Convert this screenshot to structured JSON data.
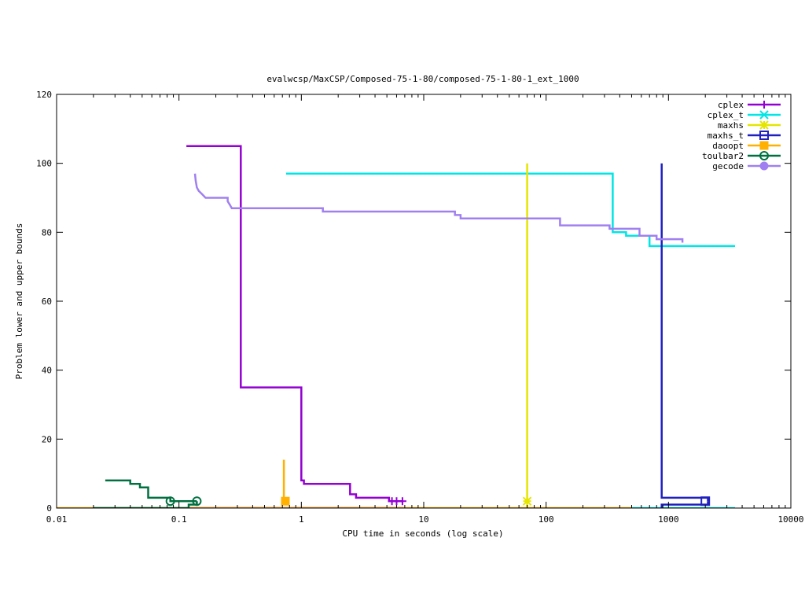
{
  "chart_data": {
    "type": "line",
    "title": "evalwcsp/MaxCSP/Composed-75-1-80/composed-75-1-80-1_ext_1000",
    "xlabel": "CPU time in seconds (log scale)",
    "ylabel": "Problem lower and upper bounds",
    "xscale": "log",
    "xlim": [
      0.01,
      10000
    ],
    "ylim": [
      0,
      120
    ],
    "xticks": [
      0.01,
      0.1,
      1,
      10,
      100,
      1000,
      10000
    ],
    "xtick_labels": [
      "0.01",
      "0.1",
      "1",
      "10",
      "100",
      "1000",
      "10000"
    ],
    "yticks": [
      0,
      20,
      40,
      60,
      80,
      100,
      120
    ],
    "ytick_labels": [
      "0",
      "20",
      "40",
      "60",
      "80",
      "100",
      "120"
    ],
    "grid": false,
    "legend_position": "top-right",
    "series": [
      {
        "name": "cplex",
        "color": "#9400d3",
        "marker": "plus",
        "upper": [
          [
            0.115,
            105
          ],
          [
            0.32,
            105
          ],
          [
            0.32,
            35
          ],
          [
            1.0,
            35
          ],
          [
            1.0,
            8
          ],
          [
            1.05,
            8
          ],
          [
            1.05,
            7
          ],
          [
            2.5,
            7
          ],
          [
            2.5,
            4
          ],
          [
            2.8,
            4
          ],
          [
            2.8,
            3
          ],
          [
            5.2,
            3
          ],
          [
            5.2,
            2
          ],
          [
            6.8,
            2
          ]
        ],
        "lower": [
          [
            0.115,
            0
          ],
          [
            6.8,
            0
          ]
        ],
        "points": [
          [
            5.5,
            2
          ],
          [
            6.0,
            2
          ],
          [
            6.7,
            2
          ]
        ]
      },
      {
        "name": "cplex_t",
        "color": "#00e5e5",
        "marker": "cross",
        "upper": [
          [
            0.75,
            97
          ],
          [
            350,
            97
          ],
          [
            350,
            80
          ],
          [
            450,
            80
          ],
          [
            450,
            79
          ],
          [
            700,
            79
          ],
          [
            700,
            76
          ],
          [
            3500,
            76
          ]
        ],
        "lower": [
          [
            500,
            0
          ],
          [
            3500,
            0
          ]
        ],
        "points": []
      },
      {
        "name": "maxhs",
        "color": "#e5e500",
        "marker": "star",
        "upper": [
          [
            70,
            100
          ],
          [
            70,
            2
          ]
        ],
        "lower": [
          [
            70,
            0
          ],
          [
            70,
            2
          ]
        ],
        "points": [
          [
            70,
            2
          ]
        ]
      },
      {
        "name": "maxhs_t",
        "color": "#2020c0",
        "marker": "open-square",
        "upper": [
          [
            880,
            100
          ],
          [
            880,
            3
          ],
          [
            2100,
            3
          ],
          [
            2100,
            2
          ]
        ],
        "lower": [
          [
            880,
            0
          ],
          [
            880,
            1
          ],
          [
            2100,
            1
          ],
          [
            2100,
            2
          ]
        ],
        "points": [
          [
            2000,
            2
          ]
        ]
      },
      {
        "name": "daoopt",
        "color": "#ffb000",
        "marker": "filled-square",
        "upper": [
          [
            0.72,
            14
          ],
          [
            0.72,
            2
          ]
        ],
        "lower": [
          [
            0.01,
            0
          ],
          [
            500,
            0
          ]
        ],
        "points": [
          [
            0.74,
            2
          ]
        ]
      },
      {
        "name": "toulbar2",
        "color": "#007040",
        "marker": "open-circle",
        "upper": [
          [
            0.025,
            8
          ],
          [
            0.04,
            8
          ],
          [
            0.04,
            7
          ],
          [
            0.048,
            7
          ],
          [
            0.048,
            6
          ],
          [
            0.056,
            6
          ],
          [
            0.056,
            3
          ],
          [
            0.085,
            3
          ],
          [
            0.085,
            2
          ],
          [
            0.14,
            2
          ]
        ],
        "lower": [
          [
            0.02,
            0
          ],
          [
            0.12,
            0
          ],
          [
            0.12,
            1
          ],
          [
            0.14,
            1
          ],
          [
            0.14,
            2
          ]
        ],
        "points": [
          [
            0.085,
            2
          ],
          [
            0.14,
            2
          ]
        ]
      },
      {
        "name": "gecode",
        "color": "#a080f0",
        "marker": "filled-circle",
        "upper": [
          [
            0.135,
            97
          ],
          [
            0.137,
            95
          ],
          [
            0.14,
            93
          ],
          [
            0.145,
            92
          ],
          [
            0.155,
            91
          ],
          [
            0.165,
            90
          ],
          [
            0.25,
            90
          ],
          [
            0.25,
            89
          ],
          [
            0.26,
            88
          ],
          [
            0.27,
            87
          ],
          [
            1.5,
            87
          ],
          [
            1.5,
            86
          ],
          [
            18,
            86
          ],
          [
            18,
            85
          ],
          [
            20,
            85
          ],
          [
            20,
            84
          ],
          [
            130,
            84
          ],
          [
            130,
            82
          ],
          [
            330,
            82
          ],
          [
            330,
            81
          ],
          [
            580,
            81
          ],
          [
            580,
            79
          ],
          [
            800,
            79
          ],
          [
            800,
            78
          ],
          [
            1300,
            78
          ],
          [
            1300,
            77
          ]
        ],
        "lower": [],
        "points": []
      }
    ]
  }
}
